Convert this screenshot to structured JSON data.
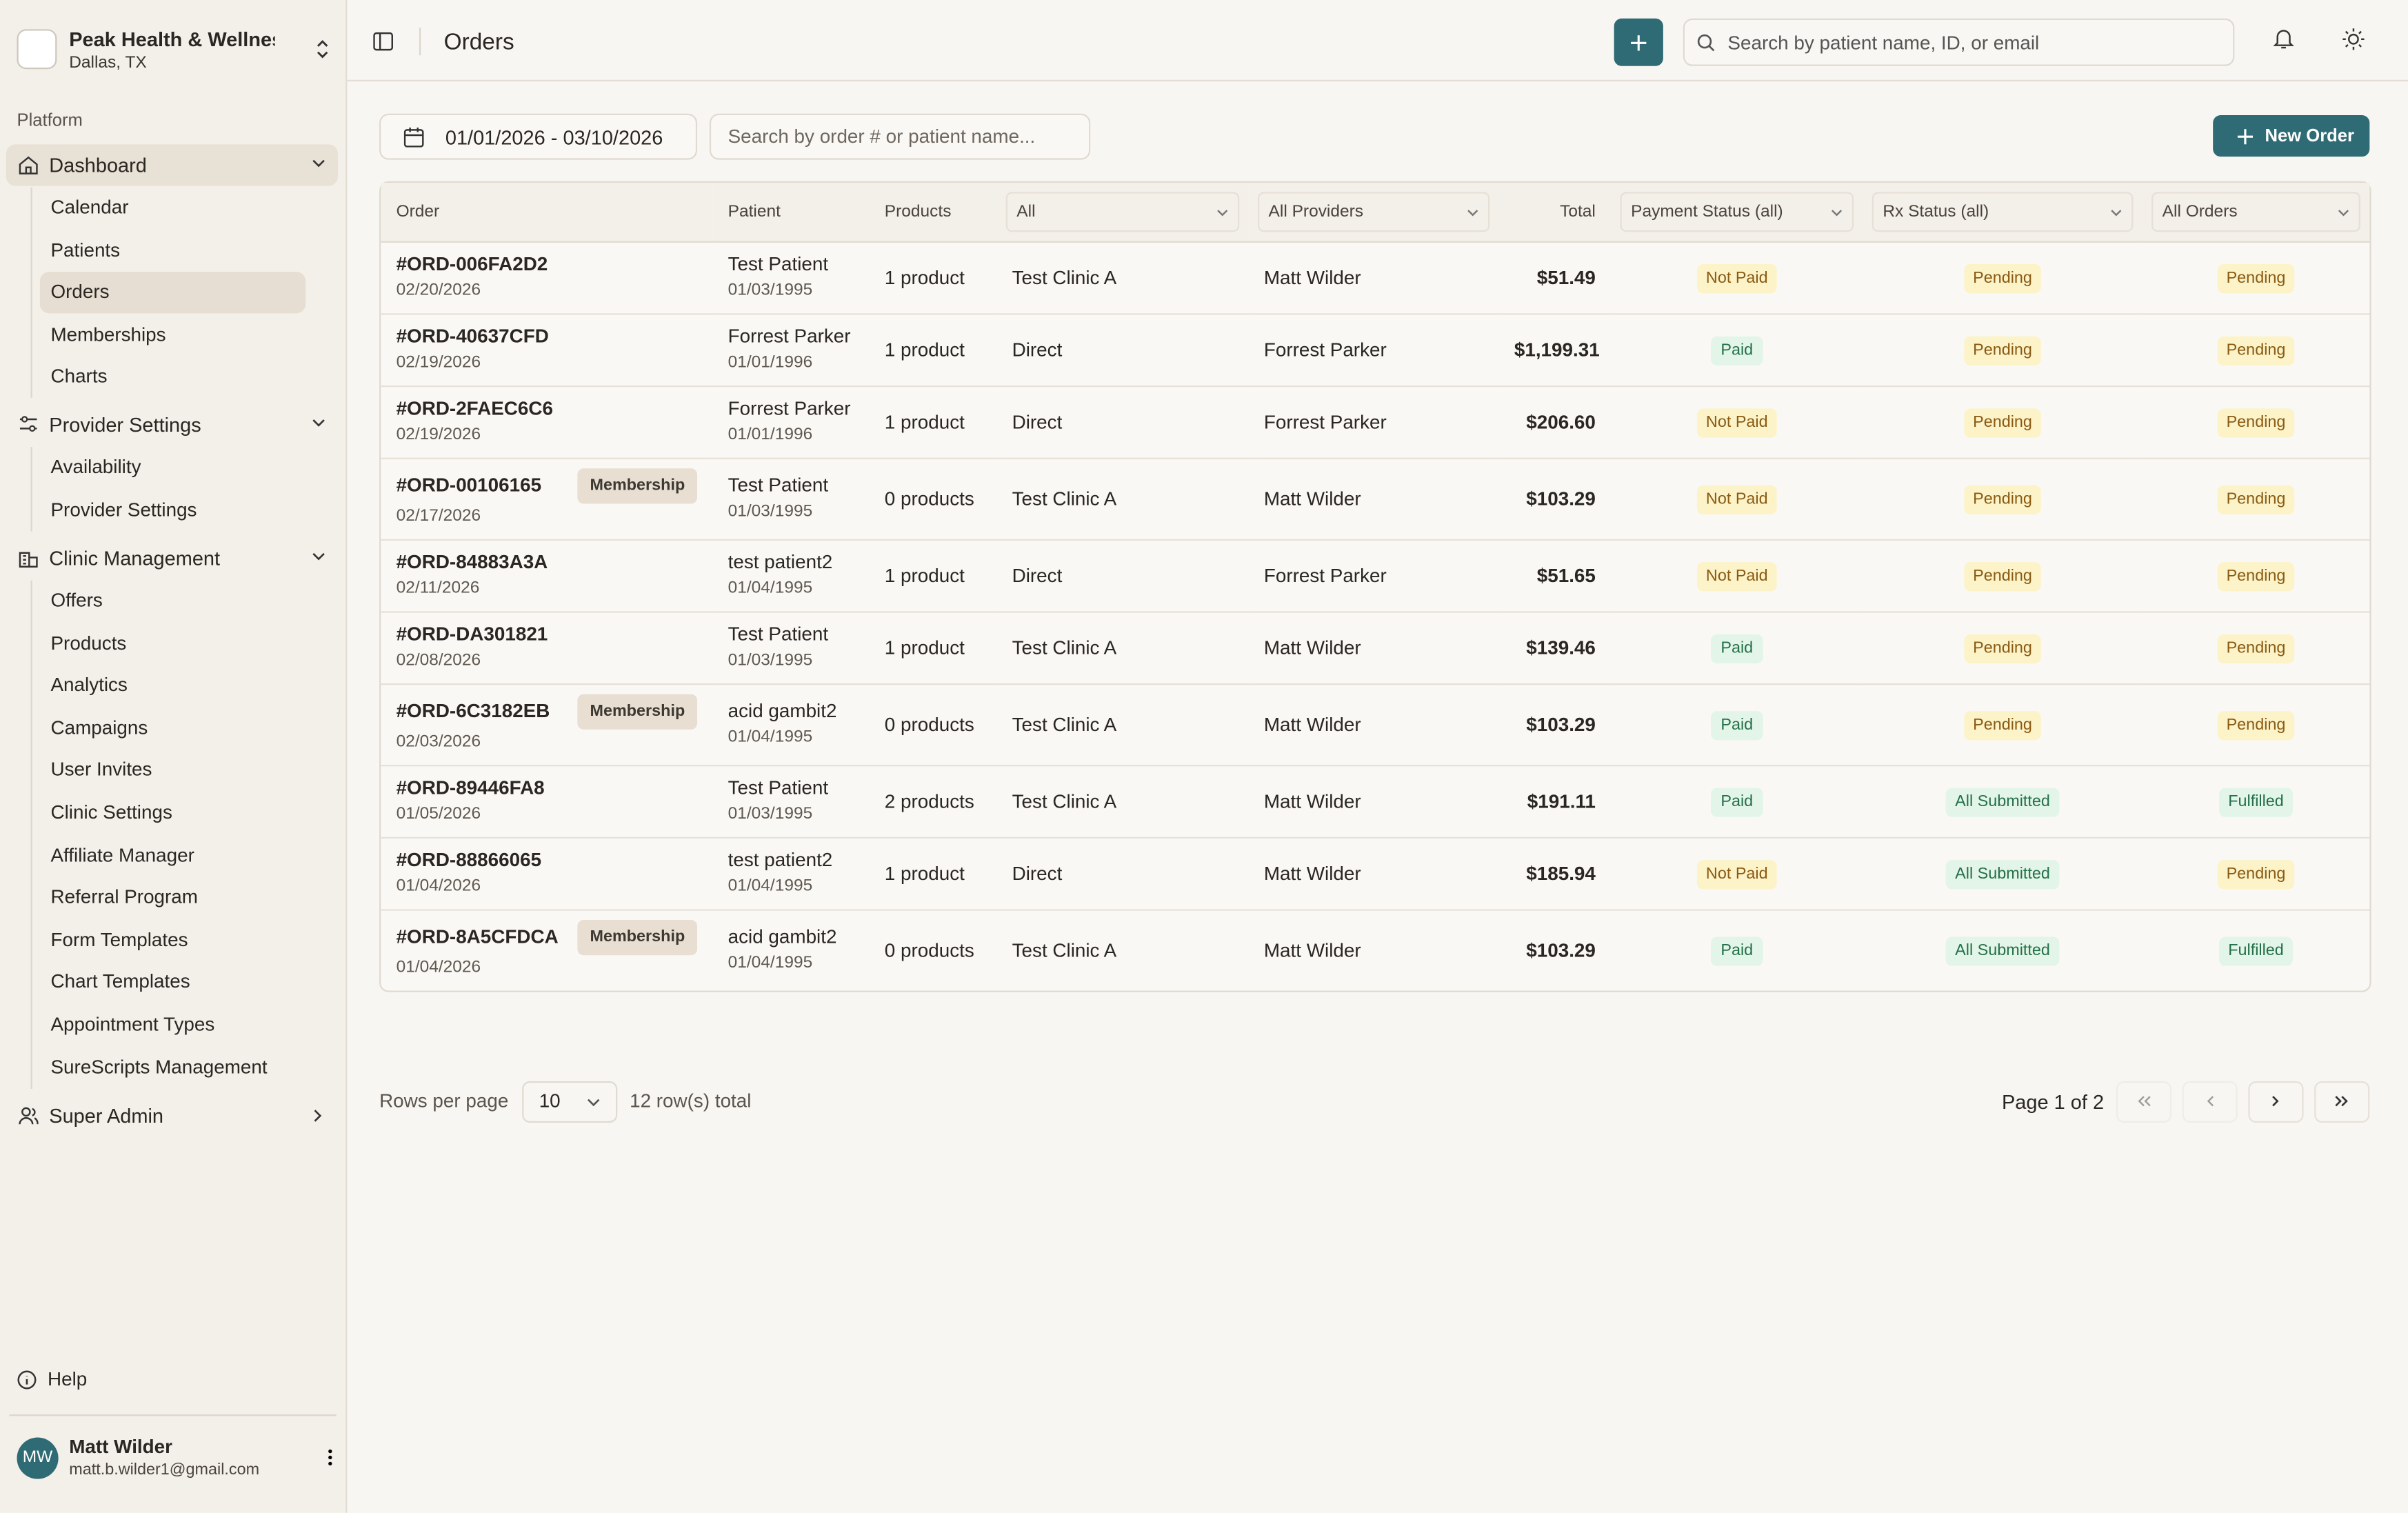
{
  "clinic": {
    "name": "Peak Health & Wellnes",
    "location": "Dallas, TX"
  },
  "sidebar": {
    "section": "Platform",
    "groups": [
      {
        "label": "Dashboard",
        "items": [
          "Calendar",
          "Patients",
          "Orders",
          "Memberships",
          "Charts"
        ]
      },
      {
        "label": "Provider Settings",
        "items": [
          "Availability",
          "Provider Settings"
        ]
      },
      {
        "label": "Clinic Management",
        "items": [
          "Offers",
          "Products",
          "Analytics",
          "Campaigns",
          "User Invites",
          "Clinic Settings",
          "Affiliate Manager",
          "Referral Program",
          "Form Templates",
          "Chart Templates",
          "Appointment Types",
          "SureScripts Management"
        ]
      },
      {
        "label": "Super Admin",
        "items": []
      }
    ],
    "help": "Help",
    "user": {
      "initials": "MW",
      "name": "Matt Wilder",
      "email": "matt.b.wilder1@gmail.com"
    }
  },
  "header": {
    "title": "Orders",
    "search_placeholder": "Search by patient name, ID, or email"
  },
  "toolbar": {
    "date_range": "01/01/2026 - 03/10/2026",
    "search_placeholder": "Search by order # or patient name...",
    "new_order": "New Order"
  },
  "table": {
    "columns": [
      "Order",
      "Patient",
      "Products",
      "All",
      "All Providers",
      "Total",
      "Payment Status (all)",
      "Rx Status (all)",
      "All Orders"
    ],
    "rows": [
      {
        "order": "#ORD-006FA2D2",
        "date": "02/20/2026",
        "patient": "Test Patient",
        "dob": "01/03/1995",
        "products": "1 product",
        "clinic": "Test Clinic A",
        "provider": "Matt Wilder",
        "total": "$51.49",
        "payment": "Not Paid",
        "rx": "Pending",
        "status": "Pending"
      },
      {
        "order": "#ORD-40637CFD",
        "date": "02/19/2026",
        "patient": "Forrest Parker",
        "dob": "01/01/1996",
        "products": "1 product",
        "clinic": "Direct",
        "provider": "Forrest Parker",
        "total": "$1,199.31",
        "payment": "Paid",
        "rx": "Pending",
        "status": "Pending"
      },
      {
        "order": "#ORD-2FAEC6C6",
        "date": "02/19/2026",
        "patient": "Forrest Parker",
        "dob": "01/01/1996",
        "products": "1 product",
        "clinic": "Direct",
        "provider": "Forrest Parker",
        "total": "$206.60",
        "payment": "Not Paid",
        "rx": "Pending",
        "status": "Pending"
      },
      {
        "order": "#ORD-00106165",
        "badge": "Membership",
        "date": "02/17/2026",
        "patient": "Test Patient",
        "dob": "01/03/1995",
        "products": "0 products",
        "clinic": "Test Clinic A",
        "provider": "Matt Wilder",
        "total": "$103.29",
        "payment": "Not Paid",
        "rx": "Pending",
        "status": "Pending"
      },
      {
        "order": "#ORD-84883A3A",
        "date": "02/11/2026",
        "patient": "test patient2",
        "dob": "01/04/1995",
        "products": "1 product",
        "clinic": "Direct",
        "provider": "Forrest Parker",
        "total": "$51.65",
        "payment": "Not Paid",
        "rx": "Pending",
        "status": "Pending"
      },
      {
        "order": "#ORD-DA301821",
        "date": "02/08/2026",
        "patient": "Test Patient",
        "dob": "01/03/1995",
        "products": "1 product",
        "clinic": "Test Clinic A",
        "provider": "Matt Wilder",
        "total": "$139.46",
        "payment": "Paid",
        "rx": "Pending",
        "status": "Pending"
      },
      {
        "order": "#ORD-6C3182EB",
        "badge": "Membership",
        "date": "02/03/2026",
        "patient": "acid gambit2",
        "dob": "01/04/1995",
        "products": "0 products",
        "clinic": "Test Clinic A",
        "provider": "Matt Wilder",
        "total": "$103.29",
        "payment": "Paid",
        "rx": "Pending",
        "status": "Pending"
      },
      {
        "order": "#ORD-89446FA8",
        "date": "01/05/2026",
        "patient": "Test Patient",
        "dob": "01/03/1995",
        "products": "2 products",
        "clinic": "Test Clinic A",
        "provider": "Matt Wilder",
        "total": "$191.11",
        "payment": "Paid",
        "rx": "All Submitted",
        "status": "Fulfilled"
      },
      {
        "order": "#ORD-88866065",
        "date": "01/04/2026",
        "patient": "test patient2",
        "dob": "01/04/1995",
        "products": "1 product",
        "clinic": "Direct",
        "provider": "Matt Wilder",
        "total": "$185.94",
        "payment": "Not Paid",
        "rx": "All Submitted",
        "status": "Pending"
      },
      {
        "order": "#ORD-8A5CFDCA",
        "badge": "Membership",
        "date": "01/04/2026",
        "patient": "acid gambit2",
        "dob": "01/04/1995",
        "products": "0 products",
        "clinic": "Test Clinic A",
        "provider": "Matt Wilder",
        "total": "$103.29",
        "payment": "Paid",
        "rx": "All Submitted",
        "status": "Fulfilled"
      }
    ]
  },
  "badge_colors": {
    "Not Paid": {
      "bg": "#fcf3c8",
      "fg": "#8a5a12"
    },
    "Paid": {
      "bg": "#e3f5e8",
      "fg": "#24704a"
    },
    "Pending": {
      "bg": "#fcf3c8",
      "fg": "#8a5a12"
    },
    "All Submitted": {
      "bg": "#e3f5e8",
      "fg": "#24704a"
    },
    "Fulfilled": {
      "bg": "#e3f5e8",
      "fg": "#24704a"
    }
  },
  "pagination": {
    "rows_per_page_label": "Rows per page",
    "rows_per_page": "10",
    "total": "12 row(s) total",
    "page": "Page 1 of 2"
  }
}
